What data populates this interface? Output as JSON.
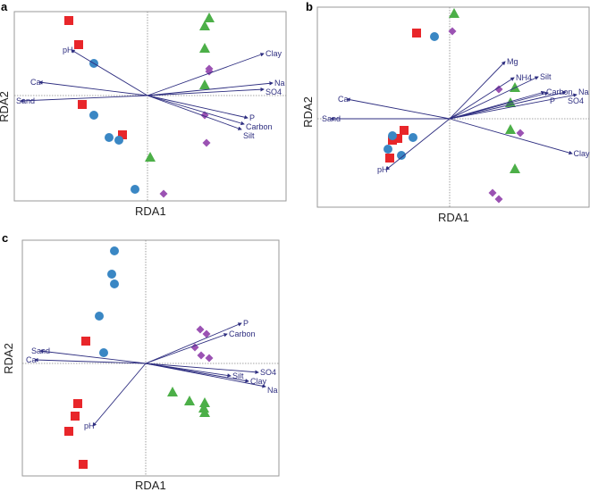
{
  "colors": {
    "red_group": "#e8262a",
    "blue_group": "#3a87c4",
    "green_group": "#4caf48",
    "purple_group": "#9b52b3",
    "arrow": "#2e2e80",
    "frame": "#9a9a9a"
  },
  "chart_data": [
    {
      "type": "scatter",
      "panel": "a",
      "xlabel": "RDA1",
      "ylabel": "RDA2",
      "xlim": [
        -1.49,
        1.55
      ],
      "ylim": [
        -1.18,
        0.94
      ],
      "series": [
        {
          "name": "red",
          "marker": "square",
          "points": [
            [
              -0.88,
              0.84
            ],
            [
              -0.77,
              0.57
            ],
            [
              -0.73,
              -0.1
            ],
            [
              -0.28,
              -0.44
            ]
          ]
        },
        {
          "name": "blue",
          "marker": "circle",
          "points": [
            [
              -0.6,
              0.36
            ],
            [
              -0.6,
              -0.22
            ],
            [
              -0.43,
              -0.47
            ],
            [
              -0.32,
              -0.5
            ],
            [
              -0.14,
              -1.05
            ]
          ]
        },
        {
          "name": "green",
          "marker": "triangle",
          "points": [
            [
              0.69,
              0.87
            ],
            [
              0.64,
              0.78
            ],
            [
              0.64,
              0.53
            ],
            [
              0.64,
              0.12
            ],
            [
              0.03,
              -0.69
            ]
          ]
        },
        {
          "name": "purple",
          "marker": "diamond",
          "points": [
            [
              0.69,
              0.3
            ],
            [
              0.69,
              0.27
            ],
            [
              0.64,
              -0.22
            ],
            [
              0.66,
              -0.53
            ],
            [
              0.18,
              -1.1
            ]
          ]
        }
      ],
      "vectors": [
        {
          "label": "pH",
          "x": -0.85,
          "y": 0.51
        },
        {
          "label": "Ca",
          "x": -1.21,
          "y": 0.15
        },
        {
          "label": "Sand",
          "x": -1.42,
          "y": -0.06
        },
        {
          "label": "Clay",
          "x": 1.3,
          "y": 0.47
        },
        {
          "label": "Na",
          "x": 1.4,
          "y": 0.14
        },
        {
          "label": "SO4",
          "x": 1.3,
          "y": 0.07
        },
        {
          "label": "P",
          "x": 1.12,
          "y": -0.25
        },
        {
          "label": "Carbon",
          "x": 1.08,
          "y": -0.32
        },
        {
          "label": "Silt",
          "x": 1.05,
          "y": -0.38
        }
      ]
    },
    {
      "type": "scatter",
      "panel": "b",
      "xlabel": "RDA1",
      "ylabel": "RDA2",
      "xlim": [
        -1.48,
        1.56
      ],
      "ylim": [
        -0.99,
        1.25
      ],
      "series": [
        {
          "name": "red",
          "marker": "square",
          "points": [
            [
              -0.37,
              0.96
            ],
            [
              -0.51,
              -0.13
            ],
            [
              -0.58,
              -0.22
            ],
            [
              -0.64,
              -0.24
            ],
            [
              -0.67,
              -0.44
            ]
          ]
        },
        {
          "name": "blue",
          "marker": "circle",
          "points": [
            [
              -0.17,
              0.92
            ],
            [
              -0.64,
              -0.19
            ],
            [
              -0.41,
              -0.21
            ],
            [
              -0.69,
              -0.34
            ],
            [
              -0.54,
              -0.41
            ]
          ]
        },
        {
          "name": "green",
          "marker": "triangle",
          "points": [
            [
              0.05,
              1.18
            ],
            [
              0.73,
              0.35
            ],
            [
              0.68,
              0.18
            ],
            [
              0.68,
              -0.12
            ],
            [
              0.73,
              -0.56
            ]
          ]
        },
        {
          "name": "purple",
          "marker": "diamond",
          "points": [
            [
              0.03,
              0.98
            ],
            [
              0.55,
              0.33
            ],
            [
              0.79,
              -0.16
            ],
            [
              0.48,
              -0.83
            ],
            [
              0.55,
              -0.9
            ]
          ]
        }
      ],
      "vectors": [
        {
          "label": "Mg",
          "x": 0.62,
          "y": 0.64
        },
        {
          "label": "NH4",
          "x": 0.72,
          "y": 0.46
        },
        {
          "label": "Silt",
          "x": 0.99,
          "y": 0.47
        },
        {
          "label": "Carbon",
          "x": 1.06,
          "y": 0.3
        },
        {
          "label": "P",
          "x": 1.1,
          "y": 0.29
        },
        {
          "label": "SO4",
          "x": 1.3,
          "y": 0.3
        },
        {
          "label": "Na",
          "x": 1.42,
          "y": 0.27
        },
        {
          "label": "Ca",
          "x": -1.15,
          "y": 0.22
        },
        {
          "label": "Sand",
          "x": -1.33,
          "y": 0.0
        },
        {
          "label": "pH",
          "x": -0.71,
          "y": -0.57
        },
        {
          "label": "Clay",
          "x": 1.37,
          "y": -0.39
        }
      ]
    },
    {
      "type": "scatter",
      "panel": "c",
      "xlabel": "RDA1",
      "ylabel": "RDA2",
      "xlim": [
        -1.38,
        1.49
      ],
      "ylim": [
        -1.26,
        1.38
      ],
      "series": [
        {
          "name": "red",
          "marker": "square",
          "points": [
            [
              -0.67,
              0.25
            ],
            [
              -0.76,
              -0.45
            ],
            [
              -0.79,
              -0.59
            ],
            [
              -0.86,
              -0.76
            ],
            [
              -0.7,
              -1.13
            ]
          ]
        },
        {
          "name": "blue",
          "marker": "circle",
          "points": [
            [
              -0.35,
              1.26
            ],
            [
              -0.38,
              1.0
            ],
            [
              -0.35,
              0.89
            ],
            [
              -0.52,
              0.53
            ],
            [
              -0.47,
              0.12
            ]
          ]
        },
        {
          "name": "green",
          "marker": "triangle",
          "points": [
            [
              0.3,
              -0.32
            ],
            [
              0.49,
              -0.42
            ],
            [
              0.66,
              -0.44
            ],
            [
              0.65,
              -0.5
            ],
            [
              0.66,
              -0.55
            ]
          ]
        },
        {
          "name": "purple",
          "marker": "diamond",
          "points": [
            [
              0.61,
              0.38
            ],
            [
              0.68,
              0.33
            ],
            [
              0.55,
              0.18
            ],
            [
              0.62,
              0.09
            ],
            [
              0.71,
              0.06
            ]
          ]
        }
      ],
      "vectors": [
        {
          "label": "P",
          "x": 1.07,
          "y": 0.45
        },
        {
          "label": "Carbon",
          "x": 0.91,
          "y": 0.33
        },
        {
          "label": "Sand",
          "x": -1.18,
          "y": 0.14
        },
        {
          "label": "Ca",
          "x": -1.24,
          "y": 0.04
        },
        {
          "label": "SO4",
          "x": 1.26,
          "y": -0.1
        },
        {
          "label": "Silt",
          "x": 0.95,
          "y": -0.14
        },
        {
          "label": "Clay",
          "x": 1.15,
          "y": -0.2
        },
        {
          "label": "Na",
          "x": 1.34,
          "y": -0.26
        },
        {
          "label": "pH",
          "x": -0.59,
          "y": -0.7
        }
      ]
    }
  ]
}
